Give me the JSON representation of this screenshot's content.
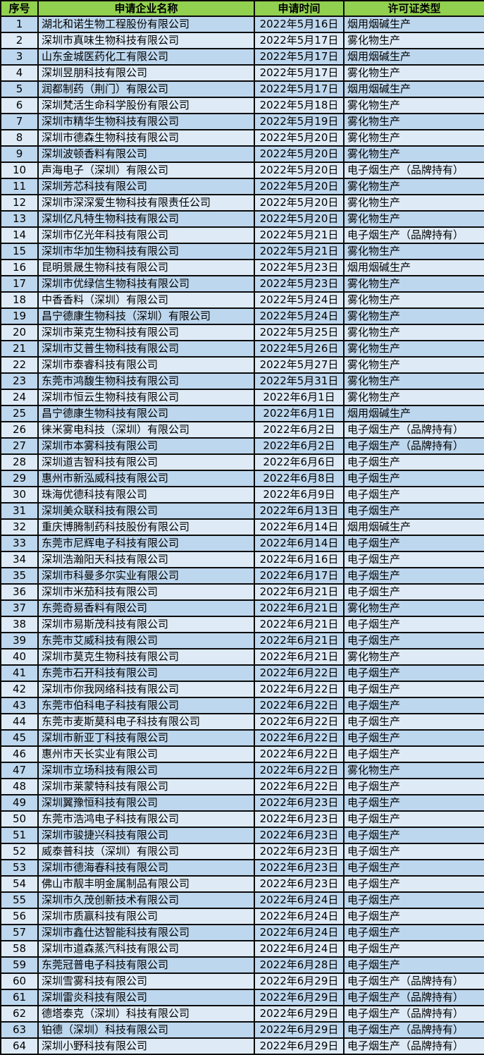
{
  "colors": {
    "header_bg": "#92d050",
    "row_odd_bg": "#bdd7ee",
    "row_even_bg": "#deebf7",
    "border": "#0b0b0b",
    "text": "#000000"
  },
  "table": {
    "columns": [
      {
        "key": "index",
        "label": "序号"
      },
      {
        "key": "company",
        "label": "申请企业名称"
      },
      {
        "key": "date",
        "label": "申请时间"
      },
      {
        "key": "license",
        "label": "许可证类型"
      }
    ],
    "rows": [
      [
        "1",
        "湖北和诺生物工程股份有限公司",
        "2022年5月16日",
        "烟用烟碱生产"
      ],
      [
        "2",
        "深圳市真味生物科技有限公司",
        "2022年5月17日",
        "雾化物生产"
      ],
      [
        "3",
        "山东金城医药化工有限公司",
        "2022年5月17日",
        "烟用烟碱生产"
      ],
      [
        "4",
        "深圳昱朋科技有限公司",
        "2022年5月17日",
        "雾化物生产"
      ],
      [
        "5",
        "润都制药（荆门）有限公司",
        "2022年5月17日",
        "烟用烟碱生产"
      ],
      [
        "6",
        "深圳梵活生命科学股份有限公司",
        "2022年5月18日",
        "雾化物生产"
      ],
      [
        "7",
        "深圳市精华生物科技有限公司",
        "2022年5月19日",
        "雾化物生产"
      ],
      [
        "8",
        "深圳市德森生物科技有限公司",
        "2022年5月20日",
        "雾化物生产"
      ],
      [
        "9",
        "深圳波顿香料有限公司",
        "2022年5月20日",
        "雾化物生产"
      ],
      [
        "10",
        "声海电子（深圳）有限公司",
        "2022年5月20日",
        "电子烟生产（品牌持有）"
      ],
      [
        "11",
        "深圳芳芯科技有限公司",
        "2022年5月20日",
        "雾化物生产"
      ],
      [
        "12",
        "深圳市深深爱生物科技有限责任公司",
        "2022年5月20日",
        "雾化物生产"
      ],
      [
        "13",
        "深圳亿凡特生物科技有限公司",
        "2022年5月20日",
        "雾化物生产"
      ],
      [
        "14",
        "深圳市亿光年科技有限公司",
        "2022年5月21日",
        "电子烟生产（品牌持有）"
      ],
      [
        "15",
        "深圳市华加生物科技有限公司",
        "2022年5月21日",
        "雾化物生产"
      ],
      [
        "16",
        "昆明景晟生物科技有限公司",
        "2022年5月23日",
        "烟用烟碱生产"
      ],
      [
        "17",
        "深圳市优绿信生物科技有限公司",
        "2022年5月23日",
        "雾化物生产"
      ],
      [
        "18",
        "中香香料（深圳）有限公司",
        "2022年5月24日",
        "雾化物生产"
      ],
      [
        "19",
        "昌宁德康生物科技（深圳）有限公司",
        "2022年5月24日",
        "雾化物生产"
      ],
      [
        "20",
        "深圳市莱克生物科技有限公司",
        "2022年5月25日",
        "雾化物生产"
      ],
      [
        "21",
        "深圳市艾普生物科技有限公司",
        "2022年5月26日",
        "雾化物生产"
      ],
      [
        "22",
        "深圳市泰睿科技有限公司",
        "2022年5月27日",
        "雾化物生产"
      ],
      [
        "23",
        "东莞市鸿馥生物科技有限公司",
        "2022年5月31日",
        "雾化物生产"
      ],
      [
        "24",
        "深圳市恒云生物科技有限公司",
        "2022年6月1日",
        "雾化物生产"
      ],
      [
        "25",
        "昌宁德康生物科技有限公司",
        "2022年6月1日",
        "烟用烟碱生产"
      ],
      [
        "26",
        "徕米雾电科技（深圳）有限公司",
        "2022年6月2日",
        "电子烟生产（品牌持有）"
      ],
      [
        "27",
        "深圳市本雾科技有限公司",
        "2022年6月2日",
        "电子烟生产（品牌持有）"
      ],
      [
        "28",
        "深圳道吉智科技有限公司",
        "2022年6月6日",
        "电子烟生产"
      ],
      [
        "29",
        "惠州市新泓威科技有限公司",
        "2022年6月8日",
        "电子烟生产"
      ],
      [
        "30",
        "珠海优德科技有限公司",
        "2022年6月9日",
        "电子烟生产"
      ],
      [
        "31",
        "深圳美众联科技有限公司",
        "2022年6月13日",
        "电子烟生产"
      ],
      [
        "32",
        "重庆博腾制药科技股份有限公司",
        "2022年6月14日",
        "烟用烟碱生产"
      ],
      [
        "33",
        "东莞市尼辉电子科技有限公司",
        "2022年6月14日",
        "电子烟生产"
      ],
      [
        "34",
        "深圳浩瀚阳天科技有限公司",
        "2022年6月16日",
        "电子烟生产"
      ],
      [
        "35",
        "深圳市科曼多尔实业有限公司",
        "2022年6月17日",
        "电子烟生产"
      ],
      [
        "36",
        "深圳市米茄科技有限公司",
        "2022年6月21日",
        "电子烟生产"
      ],
      [
        "37",
        "东莞奇易香料有限公司",
        "2022年6月21日",
        "雾化物生产"
      ],
      [
        "38",
        "深圳市易斯茂科技有限公司",
        "2022年6月21日",
        "电子烟生产"
      ],
      [
        "39",
        "东莞市艾威科技有限公司",
        "2022年6月21日",
        "电子烟生产"
      ],
      [
        "40",
        "深圳市莫克生物科技有限公司",
        "2022年6月21日",
        "雾化物生产"
      ],
      [
        "41",
        "东莞市石开科技有限公司",
        "2022年6月22日",
        "电子烟生产"
      ],
      [
        "42",
        "深圳市你我网络科技有限公司",
        "2022年6月22日",
        "电子烟生产"
      ],
      [
        "43",
        "东莞市伯科电子科技有限公司",
        "2022年6月22日",
        "电子烟生产"
      ],
      [
        "44",
        "东莞市麦斯莫科电子科技有限公司",
        "2022年6月22日",
        "电子烟生产"
      ],
      [
        "45",
        "深圳市新亚丁科技有限公司",
        "2022年6月22日",
        "电子烟生产"
      ],
      [
        "46",
        "惠州市天长实业有限公司",
        "2022年6月22日",
        "电子烟生产"
      ],
      [
        "47",
        "深圳市立场科技有限公司",
        "2022年6月22日",
        "雾化物生产"
      ],
      [
        "48",
        "深圳市莱蒙特科技有限公司",
        "2022年6月22日",
        "电子烟生产"
      ],
      [
        "49",
        "深圳翼豫恒科技有限公司",
        "2022年6月23日",
        "电子烟生产"
      ],
      [
        "50",
        "东莞市浩鸿电子科技有限公司",
        "2022年6月23日",
        "电子烟生产"
      ],
      [
        "51",
        "深圳市骏捷兴科技有限公司",
        "2022年6月23日",
        "电子烟生产"
      ],
      [
        "52",
        "威泰普科技（深圳）有限公司",
        "2022年6月23日",
        "电子烟生产"
      ],
      [
        "53",
        "深圳市德海春科技有限公司",
        "2022年6月23日",
        "电子烟生产"
      ],
      [
        "54",
        "佛山市靓丰明金属制品有限公司",
        "2022年6月23日",
        "电子烟生产"
      ],
      [
        "55",
        "深圳市久茂创新技术有限公司",
        "2022年6月24日",
        "电子烟生产"
      ],
      [
        "56",
        "深圳市质赢科技有限公司",
        "2022年6月24日",
        "电子烟生产"
      ],
      [
        "57",
        "深圳市鑫仕达智能科技有限公司",
        "2022年6月24日",
        "电子烟生产"
      ],
      [
        "58",
        "深圳市道森蒸汽科技有限公司",
        "2022年6月24日",
        "电子烟生产"
      ],
      [
        "59",
        "东莞冠普电子科技有限公司",
        "2022年6月28日",
        "电子烟生产"
      ],
      [
        "60",
        "深圳雪雾科技有限公司",
        "2022年6月29日",
        "电子烟生产（品牌持有）"
      ],
      [
        "61",
        "深圳雷炎科技有限公司",
        "2022年6月29日",
        "电子烟生产（品牌持有）"
      ],
      [
        "62",
        "德塔泰克（深圳）科技有限公司",
        "2022年6月29日",
        "电子烟生产（品牌持有）"
      ],
      [
        "63",
        "铂德（深圳）科技有限公司",
        "2022年6月29日",
        "电子烟生产（品牌持有）"
      ],
      [
        "64",
        "深圳小野科技有限公司",
        "2022年6月29日",
        "电子烟生产（品牌持有）"
      ]
    ]
  }
}
